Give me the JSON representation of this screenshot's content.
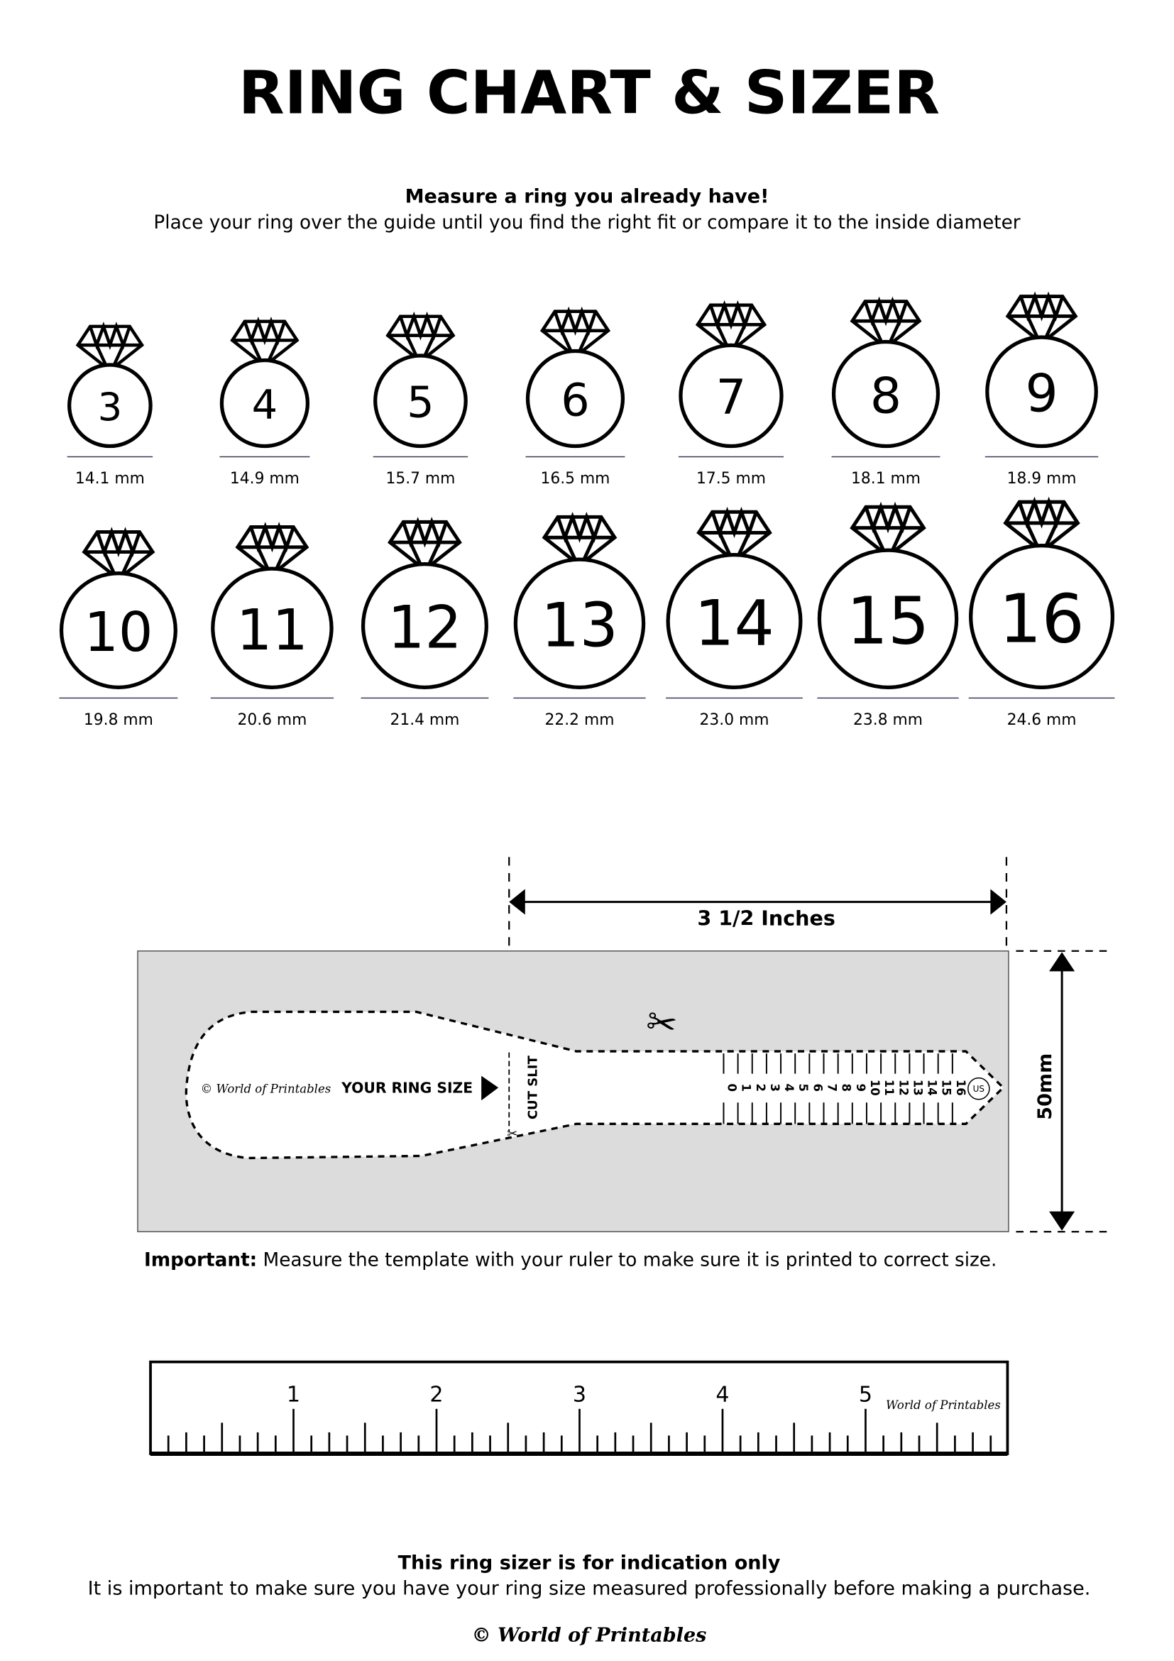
{
  "title": "RING CHART & SIZER",
  "intro": {
    "heading": "Measure a ring you already have!",
    "text": "Place your ring over the guide until you find the right fit or compare it to the inside diameter"
  },
  "rings": [
    {
      "size": "3",
      "diameter": "14.1 mm"
    },
    {
      "size": "4",
      "diameter": "14.9 mm"
    },
    {
      "size": "5",
      "diameter": "15.7 mm"
    },
    {
      "size": "6",
      "diameter": "16.5 mm"
    },
    {
      "size": "7",
      "diameter": "17.5 mm"
    },
    {
      "size": "8",
      "diameter": "18.1 mm"
    },
    {
      "size": "9",
      "diameter": "18.9 mm"
    },
    {
      "size": "10",
      "diameter": "19.8 mm"
    },
    {
      "size": "11",
      "diameter": "20.6 mm"
    },
    {
      "size": "12",
      "diameter": "21.4 mm"
    },
    {
      "size": "13",
      "diameter": "22.2 mm"
    },
    {
      "size": "14",
      "diameter": "23.0 mm"
    },
    {
      "size": "15",
      "diameter": "23.8 mm"
    },
    {
      "size": "16",
      "diameter": "24.6 mm"
    }
  ],
  "sizer": {
    "width_label": "3 1/2 Inches",
    "height_label": "50mm",
    "your_ring_size": "YOUR RING SIZE",
    "cut_slit": "CUT SLIT",
    "brand": "© World of Printables",
    "unit_badge": "US",
    "scale_numbers": [
      "0",
      "1",
      "2",
      "3",
      "4",
      "5",
      "6",
      "7",
      "8",
      "9",
      "10",
      "11",
      "12",
      "13",
      "14",
      "15",
      "16"
    ],
    "background_color": "#dcdcdc"
  },
  "important": {
    "label": "Important:",
    "text": " Measure the template with your ruler to make sure it is printed to correct size."
  },
  "ruler": {
    "numbers": [
      "1",
      "2",
      "3",
      "4",
      "5"
    ],
    "brand": "World of Printables"
  },
  "footer": {
    "heading": "This ring sizer is for indication only",
    "text": "It is important to make sure you have your ring size measured professionally before making a purchase.",
    "brand": "© World of Printables"
  }
}
